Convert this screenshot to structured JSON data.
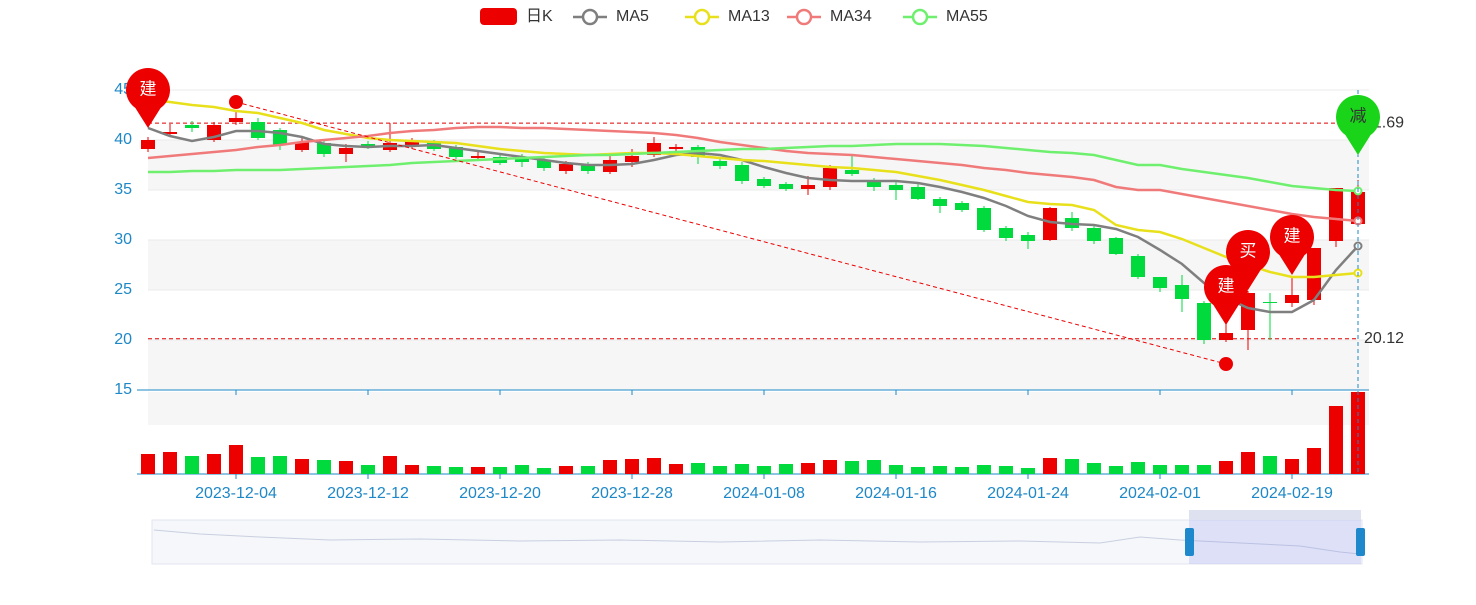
{
  "chart_data": {
    "type": "candlestick",
    "categories": [
      null,
      null,
      null,
      null,
      "2023-12-04",
      null,
      null,
      null,
      null,
      null,
      "2023-12-12",
      null,
      null,
      null,
      null,
      null,
      "2023-12-20",
      null,
      null,
      null,
      null,
      null,
      "2023-12-28",
      null,
      null,
      null,
      null,
      null,
      "2024-01-08",
      null,
      null,
      null,
      null,
      null,
      "2024-01-16",
      null,
      null,
      null,
      null,
      null,
      "2024-01-24",
      null,
      null,
      null,
      null,
      null,
      "2024-02-01",
      null,
      null,
      null,
      null,
      null,
      "2024-02-19",
      null,
      null,
      null
    ],
    "candles": {
      "name": "日K",
      "up_color": "#ec0000",
      "down_color": "#00da3c",
      "open": [
        39.1,
        40.6,
        41.5,
        40.0,
        41.8,
        41.8,
        41.0,
        39.0,
        39.7,
        38.6,
        39.6,
        39.0,
        39.3,
        39.8,
        39.3,
        38.2,
        38.3,
        38.3,
        38.0,
        36.9,
        37.5,
        36.8,
        37.8,
        38.5,
        39.1,
        39.3,
        37.9,
        37.5,
        36.1,
        35.6,
        35.1,
        35.3,
        37.0,
        36.0,
        35.5,
        35.3,
        34.1,
        33.7,
        33.2,
        31.2,
        30.5,
        30.0,
        32.2,
        31.2,
        30.2,
        28.4,
        26.3,
        25.5,
        23.7,
        20.0,
        21.0,
        23.8,
        23.7,
        24.0,
        29.9,
        31.6
      ],
      "close": [
        40.0,
        40.8,
        41.2,
        41.5,
        42.2,
        40.2,
        39.5,
        39.8,
        38.6,
        39.2,
        39.4,
        39.7,
        39.9,
        39.1,
        38.3,
        38.4,
        37.7,
        37.8,
        37.2,
        37.6,
        36.9,
        38.0,
        38.4,
        39.7,
        39.3,
        38.3,
        37.4,
        35.9,
        35.4,
        35.1,
        35.5,
        37.2,
        36.6,
        35.3,
        35.0,
        34.1,
        33.4,
        33.0,
        31.0,
        30.2,
        29.9,
        33.2,
        31.2,
        29.9,
        28.6,
        26.3,
        25.2,
        24.1,
        20.0,
        20.7,
        24.7,
        23.7,
        24.5,
        29.2,
        35.2,
        34.8
      ],
      "high": [
        40.3,
        41.6,
        41.9,
        41.8,
        42.8,
        42.2,
        41.2,
        40.2,
        40.0,
        39.6,
        39.9,
        41.69,
        40.2,
        40.0,
        39.5,
        38.9,
        38.6,
        38.6,
        38.3,
        37.9,
        37.8,
        38.4,
        39.1,
        40.3,
        39.6,
        39.5,
        38.1,
        37.8,
        36.3,
        35.8,
        36.4,
        37.5,
        38.4,
        36.2,
        35.9,
        35.6,
        34.3,
        33.9,
        33.4,
        31.4,
        30.8,
        33.3,
        32.8,
        31.6,
        30.3,
        28.6,
        26.3,
        26.5,
        23.9,
        23.5,
        24.9,
        24.7,
        26.2,
        29.2,
        35.2,
        36.0
      ],
      "low": [
        38.8,
        40.3,
        40.8,
        39.8,
        41.5,
        40.0,
        39.0,
        38.8,
        38.3,
        37.8,
        39.1,
        38.8,
        39.1,
        38.9,
        38.1,
        37.9,
        37.5,
        37.3,
        36.9,
        36.6,
        36.6,
        36.6,
        37.3,
        38.3,
        38.9,
        37.6,
        37.1,
        35.6,
        35.2,
        34.9,
        34.5,
        35.0,
        36.4,
        34.9,
        34.0,
        34.0,
        32.7,
        32.8,
        30.8,
        29.9,
        29.1,
        29.9,
        30.9,
        29.6,
        28.5,
        26.1,
        24.8,
        22.8,
        19.6,
        19.8,
        19.0,
        20.0,
        23.3,
        23.5,
        29.3,
        31.3
      ]
    },
    "series": [
      {
        "name": "MA5",
        "color": "#7f7f7f",
        "values": [
          41.2,
          40.4,
          39.9,
          40.3,
          40.9,
          40.9,
          40.7,
          40.3,
          39.6,
          39.4,
          39.3,
          39.4,
          39.4,
          39.5,
          39.2,
          38.9,
          38.6,
          38.3,
          38.0,
          37.7,
          37.5,
          37.5,
          37.6,
          38.0,
          38.5,
          38.7,
          38.5,
          38.0,
          37.3,
          36.7,
          36.2,
          36.0,
          35.9,
          35.9,
          35.9,
          35.7,
          35.3,
          34.8,
          34.2,
          33.4,
          32.4,
          31.8,
          31.6,
          31.5,
          31.1,
          30.3,
          29.0,
          27.6,
          25.7,
          24.2,
          23.2,
          22.8,
          22.8,
          24.0,
          27.0,
          29.4
        ]
      },
      {
        "name": "MA13",
        "color": "#e8e01a",
        "values": [
          44.0,
          43.8,
          43.5,
          43.3,
          42.9,
          42.7,
          42.2,
          41.7,
          41.0,
          40.6,
          40.2,
          40.0,
          39.9,
          39.8,
          39.7,
          39.4,
          39.1,
          38.9,
          38.7,
          38.6,
          38.5,
          38.6,
          38.7,
          38.7,
          38.6,
          38.4,
          38.2,
          38.0,
          37.9,
          37.7,
          37.5,
          37.3,
          37.2,
          37.0,
          36.8,
          36.4,
          36.0,
          35.5,
          35.0,
          34.4,
          33.8,
          33.6,
          33.5,
          33.0,
          31.5,
          31.0,
          30.8,
          30.1,
          29.2,
          28.3,
          27.5,
          26.8,
          26.3,
          26.3,
          26.5,
          26.7
        ]
      },
      {
        "name": "MA34",
        "color": "#f07a7a",
        "values": [
          38.2,
          38.4,
          38.6,
          38.8,
          39.0,
          39.3,
          39.5,
          39.8,
          40.0,
          40.2,
          40.4,
          40.7,
          40.9,
          41.0,
          41.2,
          41.3,
          41.3,
          41.2,
          41.2,
          41.1,
          41.0,
          40.9,
          40.8,
          40.7,
          40.5,
          40.2,
          39.8,
          39.5,
          39.2,
          38.9,
          38.7,
          38.6,
          38.5,
          38.3,
          38.1,
          37.9,
          37.7,
          37.5,
          37.2,
          37.0,
          36.7,
          36.5,
          36.3,
          36.0,
          35.3,
          35.0,
          35.0,
          34.6,
          34.2,
          33.8,
          33.4,
          33.0,
          32.6,
          32.3,
          32.1,
          31.9
        ]
      },
      {
        "name": "MA55",
        "color": "#6ef06e",
        "values": [
          36.8,
          36.8,
          36.9,
          36.9,
          37.0,
          37.0,
          37.0,
          37.1,
          37.2,
          37.3,
          37.4,
          37.5,
          37.7,
          37.8,
          37.9,
          38.0,
          38.1,
          38.2,
          38.3,
          38.4,
          38.5,
          38.5,
          38.6,
          38.7,
          38.8,
          38.9,
          39.0,
          39.1,
          39.1,
          39.2,
          39.3,
          39.4,
          39.4,
          39.5,
          39.6,
          39.6,
          39.6,
          39.5,
          39.4,
          39.2,
          39.0,
          38.8,
          38.7,
          38.5,
          38.0,
          37.5,
          37.5,
          37.1,
          36.8,
          36.5,
          36.2,
          35.8,
          35.4,
          35.2,
          35.0,
          34.9
        ]
      }
    ],
    "volume": [
      20,
      22,
      18,
      20,
      29,
      17,
      18,
      15,
      14,
      13,
      9,
      18,
      9,
      8,
      7,
      7,
      7,
      9,
      6,
      8,
      8,
      14,
      15,
      16,
      10,
      11,
      8,
      10,
      8,
      10,
      11,
      14,
      13,
      14,
      9,
      7,
      8,
      7,
      9,
      8,
      6,
      16,
      15,
      11,
      8,
      12,
      9,
      9,
      9,
      13,
      22,
      18,
      15,
      26,
      68,
      82
    ],
    "volume_ylim": [
      0,
      82
    ],
    "ylim": [
      15,
      45
    ],
    "yticks": [
      15,
      20,
      25,
      30,
      35,
      40,
      45
    ],
    "mark_lines": [
      {
        "value": 41.69
      },
      {
        "value": 20.12
      }
    ],
    "mark_points": [
      {
        "label": "建",
        "index": 0,
        "value": 41.2,
        "color": "#ec0000"
      },
      {
        "label": "建",
        "index": 49,
        "value": 21.5,
        "color": "#ec0000"
      },
      {
        "label": "买",
        "index": 50,
        "value": 25.0,
        "color": "#ec0000"
      },
      {
        "label": "建",
        "index": 52,
        "value": 26.5,
        "color": "#ec0000"
      },
      {
        "label": "减",
        "index": 55,
        "value": 38.5,
        "color": "#19d419"
      }
    ],
    "trend_line": {
      "x": [
        4,
        49
      ],
      "y": [
        43.8,
        17.6
      ],
      "color": "#ec0000"
    }
  }
}
